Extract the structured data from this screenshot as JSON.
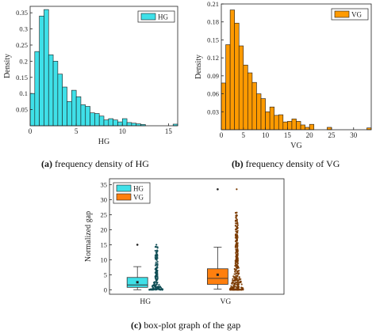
{
  "chart_data": [
    {
      "type": "bar",
      "subtype": "histogram",
      "caption_tag": "(a)",
      "caption_text": "frequency density of HG",
      "xlabel": "HG",
      "ylabel": "Density",
      "legend": [
        "HG"
      ],
      "legend_position": "top-right",
      "color": "#3fe0e8",
      "xlim": [
        0,
        16
      ],
      "ylim": [
        0,
        0.37
      ],
      "xticks": [
        0,
        5,
        10,
        15
      ],
      "yticks": [
        0.05,
        0.1,
        0.15,
        0.2,
        0.25,
        0.3,
        0.35
      ],
      "bin_width": 0.5,
      "bin_starts": [
        0,
        0.5,
        1,
        1.5,
        2,
        2.5,
        3,
        3.5,
        4,
        4.5,
        5,
        5.5,
        6,
        6.5,
        7,
        7.5,
        8,
        8.5,
        9,
        9.5,
        10,
        10.5,
        11,
        11.5,
        12,
        12.5,
        13,
        13.5,
        14,
        14.5,
        15,
        15.5
      ],
      "values": [
        0.1,
        0.23,
        0.34,
        0.36,
        0.22,
        0.2,
        0.16,
        0.12,
        0.075,
        0.11,
        0.09,
        0.065,
        0.06,
        0.04,
        0.038,
        0.03,
        0.018,
        0.022,
        0.018,
        0.012,
        0.022,
        0.01,
        0.008,
        0.006,
        0.004,
        0.0,
        0.0,
        0.0,
        0.0,
        0.0,
        0.0,
        0.005
      ]
    },
    {
      "type": "bar",
      "subtype": "histogram",
      "caption_tag": "(b)",
      "caption_text": "frequency density of VG",
      "xlabel": "VG",
      "ylabel": "Density",
      "legend": [
        "VG"
      ],
      "legend_position": "top-right",
      "color": "#ff9a00",
      "xlim": [
        0,
        34
      ],
      "ylim": [
        0,
        0.21
      ],
      "xticks": [
        0,
        5,
        10,
        15,
        20,
        25,
        30
      ],
      "yticks": [
        0.03,
        0.06,
        0.09,
        0.12,
        0.15,
        0.18,
        0.21
      ],
      "bin_width": 1,
      "bin_starts": [
        0,
        1,
        2,
        3,
        4,
        5,
        6,
        7,
        8,
        9,
        10,
        11,
        12,
        13,
        14,
        15,
        16,
        17,
        18,
        19,
        20,
        21,
        22,
        23,
        24,
        25,
        26,
        27,
        28,
        29,
        30,
        31,
        32,
        33
      ],
      "values": [
        0.078,
        0.142,
        0.2,
        0.178,
        0.14,
        0.108,
        0.095,
        0.079,
        0.06,
        0.052,
        0.03,
        0.038,
        0.024,
        0.025,
        0.013,
        0.014,
        0.018,
        0.014,
        0.008,
        0.004,
        0.009,
        0.0,
        0.0,
        0.0,
        0.004,
        0.0,
        0.0,
        0.0,
        0.0,
        0.0,
        0.0,
        0.0,
        0.0,
        0.003
      ]
    },
    {
      "type": "box",
      "caption_tag": "(c)",
      "caption_text": "box-plot graph of the gap",
      "ylabel": "Normalized gap",
      "categories": [
        "HG",
        "VG"
      ],
      "legend": [
        "HG",
        "VG"
      ],
      "legend_position": "top-left",
      "ylim": [
        -1.5,
        37
      ],
      "yticks": [
        0,
        5,
        10,
        15,
        20,
        25,
        30,
        35
      ],
      "series": [
        {
          "name": "HG",
          "color": "#3fe0e8",
          "dot_color": "#0e4d54",
          "min": 0,
          "q1": 0.8,
          "median": 1.6,
          "q3": 4.1,
          "max": 7.7,
          "mean": 2.5,
          "outliers": [
            15
          ]
        },
        {
          "name": "VG",
          "color": "#ff7f0e",
          "dot_color": "#7a3a00",
          "min": 0.2,
          "q1": 1.8,
          "median": 3.8,
          "q3": 7.0,
          "max": 14.2,
          "mean": 5.0,
          "outliers": [
            33.5
          ]
        }
      ]
    }
  ]
}
